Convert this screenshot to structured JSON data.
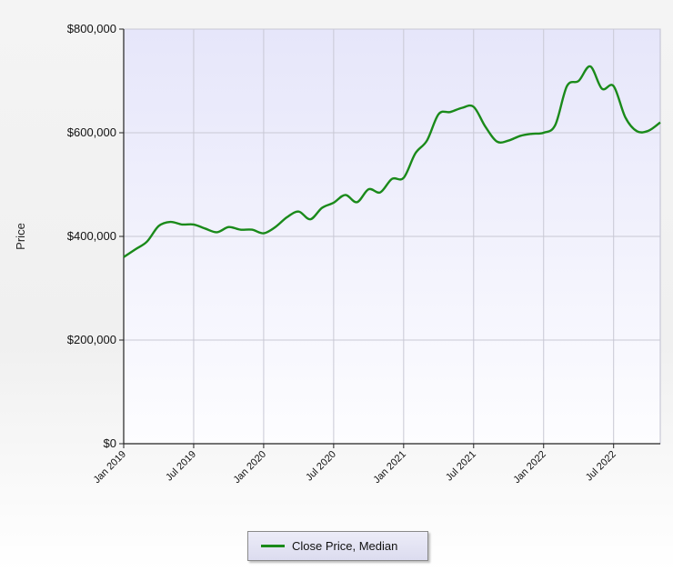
{
  "chart_data": {
    "type": "line",
    "title": "",
    "xlabel": "",
    "ylabel": "Price",
    "ylim": [
      0,
      800000
    ],
    "y_ticks": [
      0,
      200000,
      400000,
      600000,
      800000
    ],
    "y_tick_labels": [
      "$0",
      "$200,000",
      "$400,000",
      "$600,000",
      "$800,000"
    ],
    "x_ticks": [
      "2019-01",
      "2019-07",
      "2020-01",
      "2020-07",
      "2021-01",
      "2021-07",
      "2022-01",
      "2022-07"
    ],
    "x_tick_labels": [
      "Jan 2019",
      "Jul 2019",
      "Jan 2020",
      "Jul 2020",
      "Jan 2021",
      "Jul 2021",
      "Jan 2022",
      "Jul 2022"
    ],
    "x_range": [
      "2019-01",
      "2022-11"
    ],
    "grid": true,
    "legend": "bottom-center",
    "series": [
      {
        "name": "Close Price, Median",
        "color": "#1a8a1a",
        "x": [
          "2019-01",
          "2019-02",
          "2019-03",
          "2019-04",
          "2019-05",
          "2019-06",
          "2019-07",
          "2019-08",
          "2019-09",
          "2019-10",
          "2019-11",
          "2019-12",
          "2020-01",
          "2020-02",
          "2020-03",
          "2020-04",
          "2020-05",
          "2020-06",
          "2020-07",
          "2020-08",
          "2020-09",
          "2020-10",
          "2020-11",
          "2020-12",
          "2021-01",
          "2021-02",
          "2021-03",
          "2021-04",
          "2021-05",
          "2021-06",
          "2021-07",
          "2021-08",
          "2021-09",
          "2021-10",
          "2021-11",
          "2021-12",
          "2022-01",
          "2022-02",
          "2022-03",
          "2022-04",
          "2022-05",
          "2022-06",
          "2022-07",
          "2022-08",
          "2022-09",
          "2022-10",
          "2022-11"
        ],
        "values": [
          360000,
          375000,
          390000,
          420000,
          428000,
          423000,
          423000,
          415000,
          408000,
          418000,
          413000,
          413000,
          406000,
          418000,
          437000,
          448000,
          433000,
          455000,
          465000,
          480000,
          466000,
          491000,
          485000,
          511000,
          513000,
          560000,
          585000,
          636000,
          640000,
          648000,
          650000,
          612000,
          583000,
          585000,
          594000,
          598000,
          600000,
          615000,
          690000,
          700000,
          728000,
          685000,
          690000,
          630000,
          603000,
          604000,
          620000
        ]
      }
    ]
  }
}
